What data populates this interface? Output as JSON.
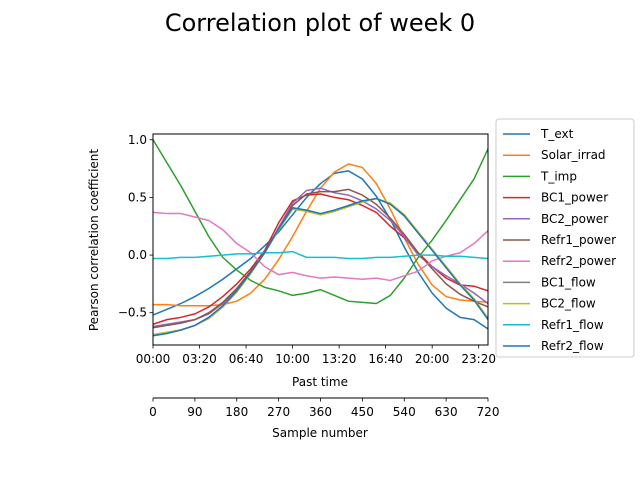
{
  "chart_data": {
    "type": "line",
    "title": "Correlation plot of week 0",
    "xlabel": "Past time",
    "ylabel": "Pearson correlation coefficient",
    "secondary_xlabel": "Sample number",
    "x_range": [
      0,
      720
    ],
    "ylim": [
      -0.78,
      1.05
    ],
    "yticks": [
      1.0,
      0.5,
      0.0,
      -0.5
    ],
    "ytick_labels": [
      "1.0",
      "0.5",
      "0.0",
      "−0.5"
    ],
    "time_ticks": [
      {
        "sample": 0,
        "label": "00:00"
      },
      {
        "sample": 100,
        "label": "03:20"
      },
      {
        "sample": 200,
        "label": "06:40"
      },
      {
        "sample": 300,
        "label": "10:00"
      },
      {
        "sample": 400,
        "label": "13:20"
      },
      {
        "sample": 500,
        "label": "16:40"
      },
      {
        "sample": 600,
        "label": "20:00"
      },
      {
        "sample": 700,
        "label": "23:20"
      }
    ],
    "sample_ticks": [
      0,
      90,
      180,
      270,
      360,
      450,
      540,
      630,
      720
    ],
    "grid": false,
    "legend_position": "right-outside",
    "series": [
      {
        "name": "T_ext",
        "color": "#1f77b4",
        "x": [
          0,
          30,
          60,
          90,
          120,
          150,
          180,
          210,
          240,
          270,
          300,
          330,
          360,
          390,
          420,
          450,
          480,
          510,
          540,
          570,
          600,
          630,
          660,
          690,
          720
        ],
        "y": [
          -0.52,
          -0.47,
          -0.42,
          -0.36,
          -0.29,
          -0.21,
          -0.12,
          -0.03,
          0.08,
          0.2,
          0.35,
          0.5,
          0.62,
          0.71,
          0.73,
          0.66,
          0.51,
          0.31,
          0.07,
          -0.15,
          -0.33,
          -0.46,
          -0.54,
          -0.56,
          -0.64
        ]
      },
      {
        "name": "Solar_irrad",
        "color": "#ff7f0e",
        "x": [
          0,
          30,
          60,
          90,
          120,
          150,
          180,
          210,
          240,
          270,
          300,
          330,
          360,
          390,
          420,
          450,
          480,
          510,
          540,
          570,
          600,
          630,
          660,
          690,
          720
        ],
        "y": [
          -0.43,
          -0.43,
          -0.44,
          -0.44,
          -0.44,
          -0.43,
          -0.4,
          -0.33,
          -0.21,
          -0.04,
          0.16,
          0.38,
          0.58,
          0.72,
          0.79,
          0.76,
          0.62,
          0.4,
          0.15,
          -0.08,
          -0.26,
          -0.36,
          -0.39,
          -0.4,
          -0.41
        ]
      },
      {
        "name": "T_imp",
        "color": "#2ca02c",
        "x": [
          0,
          30,
          60,
          90,
          120,
          150,
          180,
          210,
          240,
          270,
          300,
          330,
          360,
          390,
          420,
          450,
          480,
          510,
          540,
          570,
          600,
          630,
          660,
          690,
          720
        ],
        "y": [
          1.0,
          0.8,
          0.6,
          0.38,
          0.16,
          -0.02,
          -0.13,
          -0.22,
          -0.28,
          -0.31,
          -0.35,
          -0.33,
          -0.3,
          -0.35,
          -0.4,
          -0.41,
          -0.42,
          -0.35,
          -0.2,
          -0.02,
          0.13,
          0.3,
          0.48,
          0.66,
          0.92
        ]
      },
      {
        "name": "BC1_power",
        "color": "#d62728",
        "x": [
          0,
          30,
          60,
          90,
          120,
          150,
          180,
          210,
          240,
          270,
          300,
          330,
          360,
          390,
          420,
          450,
          480,
          510,
          540,
          570,
          600,
          630,
          660,
          690,
          720
        ],
        "y": [
          -0.6,
          -0.56,
          -0.54,
          -0.51,
          -0.45,
          -0.36,
          -0.25,
          -0.12,
          0.04,
          0.28,
          0.47,
          0.52,
          0.53,
          0.5,
          0.48,
          0.43,
          0.37,
          0.25,
          0.15,
          0.02,
          -0.1,
          -0.2,
          -0.26,
          -0.27,
          -0.31
        ]
      },
      {
        "name": "BC2_power",
        "color": "#9467bd",
        "x": [
          0,
          30,
          60,
          90,
          120,
          150,
          180,
          210,
          240,
          270,
          300,
          330,
          360,
          390,
          420,
          450,
          480,
          510,
          540,
          570,
          600,
          630,
          660,
          690,
          720
        ],
        "y": [
          -0.62,
          -0.6,
          -0.58,
          -0.56,
          -0.51,
          -0.42,
          -0.3,
          -0.15,
          0.02,
          0.24,
          0.45,
          0.56,
          0.58,
          0.54,
          0.52,
          0.47,
          0.4,
          0.3,
          0.16,
          0.0,
          -0.1,
          -0.18,
          -0.25,
          -0.33,
          -0.42
        ]
      },
      {
        "name": "Refr1_power",
        "color": "#8c564b",
        "x": [
          0,
          30,
          60,
          90,
          120,
          150,
          180,
          210,
          240,
          270,
          300,
          330,
          360,
          390,
          420,
          450,
          480,
          510,
          540,
          570,
          600,
          630,
          660,
          690,
          720
        ],
        "y": [
          -0.63,
          -0.61,
          -0.59,
          -0.56,
          -0.5,
          -0.41,
          -0.29,
          -0.14,
          0.02,
          0.22,
          0.43,
          0.53,
          0.55,
          0.55,
          0.57,
          0.52,
          0.44,
          0.32,
          0.18,
          0.02,
          -0.12,
          -0.25,
          -0.34,
          -0.4,
          -0.45
        ]
      },
      {
        "name": "Refr2_power",
        "color": "#e377c2",
        "x": [
          0,
          30,
          60,
          90,
          120,
          150,
          180,
          210,
          240,
          270,
          300,
          330,
          360,
          390,
          420,
          450,
          480,
          510,
          540,
          570,
          600,
          630,
          660,
          690,
          720
        ],
        "y": [
          0.37,
          0.36,
          0.36,
          0.33,
          0.3,
          0.22,
          0.1,
          0.02,
          -0.1,
          -0.17,
          -0.15,
          -0.18,
          -0.2,
          -0.19,
          -0.2,
          -0.21,
          -0.2,
          -0.22,
          -0.18,
          -0.14,
          -0.05,
          -0.01,
          0.02,
          0.1,
          0.21
        ]
      },
      {
        "name": "BC1_flow",
        "color": "#7f7f7f",
        "x": [
          0,
          30,
          60,
          90,
          120,
          150,
          180,
          210,
          240,
          270,
          300,
          330,
          360,
          390,
          420,
          450,
          480,
          510,
          540,
          570,
          600,
          630,
          660,
          690,
          720
        ],
        "y": [
          -0.69,
          -0.67,
          -0.65,
          -0.61,
          -0.55,
          -0.45,
          -0.32,
          -0.16,
          0.02,
          0.22,
          0.4,
          0.38,
          0.35,
          0.38,
          0.42,
          0.46,
          0.49,
          0.45,
          0.35,
          0.2,
          0.05,
          -0.1,
          -0.25,
          -0.38,
          -0.55
        ]
      },
      {
        "name": "BC2_flow",
        "color": "#bcbd22",
        "x": [
          0,
          30,
          60,
          90,
          120,
          150,
          180,
          210,
          240,
          270,
          300,
          330,
          360,
          390,
          420,
          450,
          480,
          510,
          540,
          570,
          600,
          630,
          660,
          690,
          720
        ],
        "y": [
          -0.69,
          -0.67,
          -0.65,
          -0.61,
          -0.55,
          -0.45,
          -0.32,
          -0.16,
          0.02,
          0.22,
          0.4,
          0.38,
          0.35,
          0.38,
          0.42,
          0.46,
          0.49,
          0.45,
          0.35,
          0.2,
          0.05,
          -0.1,
          -0.25,
          -0.38,
          -0.55
        ]
      },
      {
        "name": "Refr1_flow",
        "color": "#17becf",
        "x": [
          0,
          30,
          60,
          90,
          120,
          150,
          180,
          210,
          240,
          270,
          300,
          330,
          360,
          390,
          420,
          450,
          480,
          510,
          540,
          570,
          600,
          630,
          660,
          690,
          720
        ],
        "y": [
          -0.03,
          -0.03,
          -0.02,
          -0.02,
          -0.01,
          0.0,
          0.01,
          0.01,
          0.02,
          0.02,
          0.03,
          -0.02,
          -0.02,
          -0.02,
          -0.03,
          -0.03,
          -0.02,
          -0.02,
          -0.01,
          0.0,
          0.0,
          -0.01,
          -0.01,
          -0.02,
          -0.03
        ]
      },
      {
        "name": "Refr2_flow",
        "color": "#1f77b4",
        "x": [
          0,
          30,
          60,
          90,
          120,
          150,
          180,
          210,
          240,
          270,
          300,
          330,
          360,
          390,
          420,
          450,
          480,
          510,
          540,
          570,
          600,
          630,
          660,
          690,
          720
        ],
        "y": [
          -0.7,
          -0.68,
          -0.65,
          -0.61,
          -0.54,
          -0.44,
          -0.31,
          -0.15,
          0.02,
          0.23,
          0.41,
          0.39,
          0.36,
          0.39,
          0.43,
          0.47,
          0.49,
          0.44,
          0.34,
          0.19,
          0.04,
          -0.11,
          -0.26,
          -0.39,
          -0.56
        ]
      }
    ]
  }
}
